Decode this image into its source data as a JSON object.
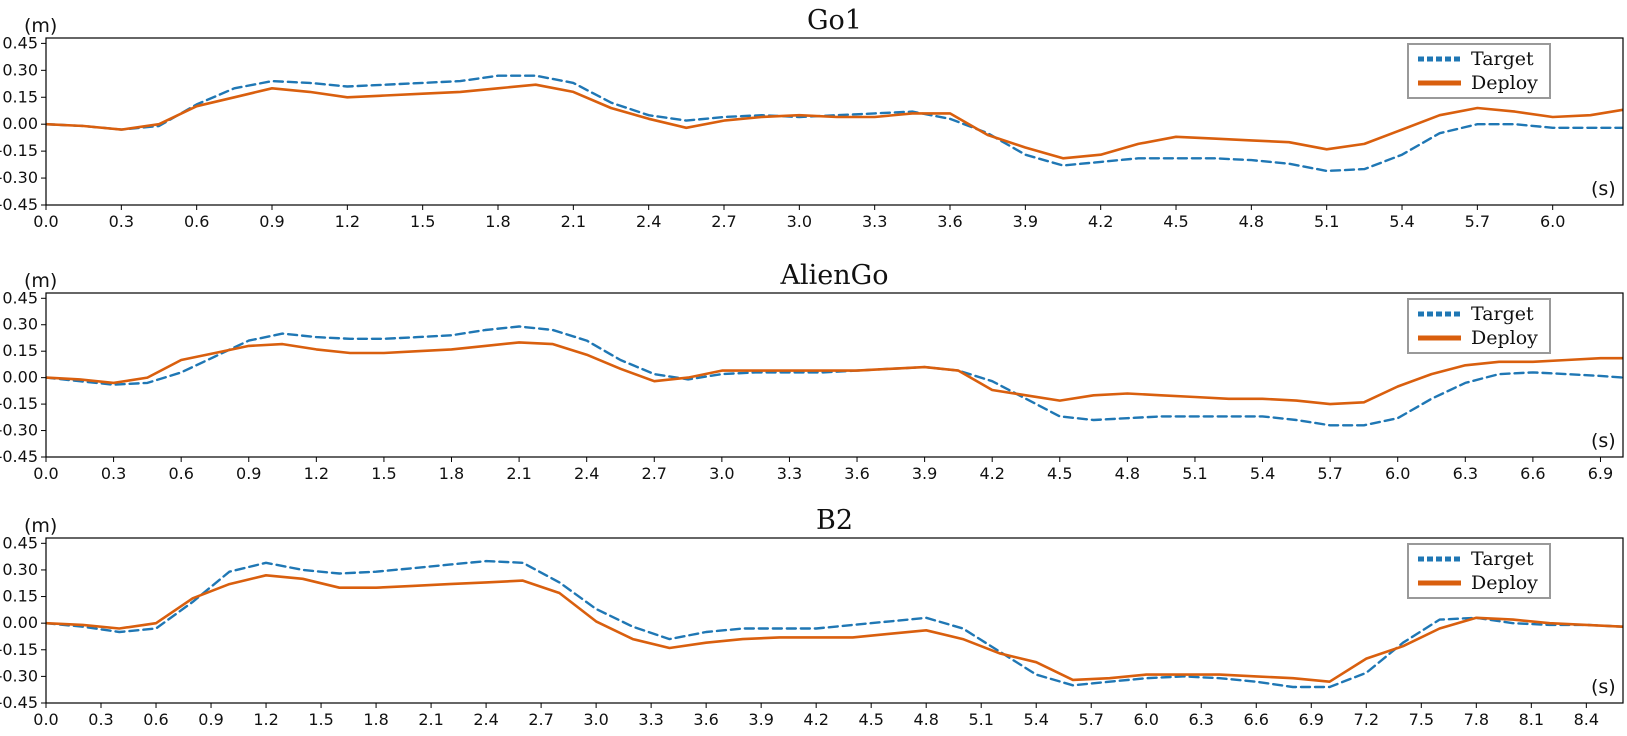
{
  "figure": {
    "colors": {
      "target": "#1f77b4",
      "deploy": "#d95f0e",
      "axis": "#000000"
    }
  },
  "chart_data": [
    {
      "type": "line",
      "title": "Go1",
      "ylabel": "(m)",
      "xlabel": "(s)",
      "ylim": [
        -0.45,
        0.48
      ],
      "xlim": [
        0.0,
        6.28
      ],
      "yticks": [
        "0.45",
        "0.30",
        "0.15",
        "0.00",
        "-0.15",
        "-0.30",
        "-0.45"
      ],
      "xticks": [
        "0.0",
        "0.3",
        "0.6",
        "0.9",
        "1.2",
        "1.5",
        "1.8",
        "2.1",
        "2.4",
        "2.7",
        "3.0",
        "3.3",
        "3.6",
        "3.9",
        "4.2",
        "4.5",
        "4.8",
        "5.1",
        "5.4",
        "5.7",
        "6.0"
      ],
      "legend": {
        "position": "top-right",
        "entries": [
          "Target",
          "Deploy"
        ]
      },
      "series": [
        {
          "name": "Target",
          "style": "dashed",
          "x": [
            0.0,
            0.15,
            0.3,
            0.45,
            0.6,
            0.75,
            0.9,
            1.05,
            1.2,
            1.35,
            1.5,
            1.65,
            1.8,
            1.95,
            2.1,
            2.25,
            2.4,
            2.55,
            2.7,
            2.85,
            3.0,
            3.15,
            3.3,
            3.45,
            3.6,
            3.75,
            3.9,
            4.05,
            4.2,
            4.35,
            4.5,
            4.65,
            4.8,
            4.95,
            5.1,
            5.25,
            5.4,
            5.55,
            5.7,
            5.85,
            6.0,
            6.15,
            6.28
          ],
          "y": [
            0.0,
            -0.01,
            -0.03,
            -0.01,
            0.11,
            0.2,
            0.24,
            0.23,
            0.21,
            0.22,
            0.23,
            0.24,
            0.27,
            0.27,
            0.23,
            0.12,
            0.05,
            0.02,
            0.04,
            0.05,
            0.04,
            0.05,
            0.06,
            0.07,
            0.03,
            -0.05,
            -0.17,
            -0.23,
            -0.21,
            -0.19,
            -0.19,
            -0.19,
            -0.2,
            -0.22,
            -0.26,
            -0.25,
            -0.17,
            -0.05,
            0.0,
            0.0,
            -0.02,
            -0.02,
            -0.02
          ]
        },
        {
          "name": "Deploy",
          "style": "solid",
          "x": [
            0.0,
            0.15,
            0.3,
            0.45,
            0.6,
            0.75,
            0.9,
            1.05,
            1.2,
            1.35,
            1.5,
            1.65,
            1.8,
            1.95,
            2.1,
            2.25,
            2.4,
            2.55,
            2.7,
            2.85,
            3.0,
            3.15,
            3.3,
            3.45,
            3.6,
            3.75,
            3.9,
            4.05,
            4.2,
            4.35,
            4.5,
            4.65,
            4.8,
            4.95,
            5.1,
            5.25,
            5.4,
            5.55,
            5.7,
            5.85,
            6.0,
            6.15,
            6.28
          ],
          "y": [
            0.0,
            -0.01,
            -0.03,
            0.0,
            0.1,
            0.15,
            0.2,
            0.18,
            0.15,
            0.16,
            0.17,
            0.18,
            0.2,
            0.22,
            0.18,
            0.09,
            0.03,
            -0.02,
            0.02,
            0.04,
            0.05,
            0.04,
            0.04,
            0.06,
            0.06,
            -0.06,
            -0.13,
            -0.19,
            -0.17,
            -0.11,
            -0.07,
            -0.08,
            -0.09,
            -0.1,
            -0.14,
            -0.11,
            -0.03,
            0.05,
            0.09,
            0.07,
            0.04,
            0.05,
            0.08
          ]
        }
      ]
    },
    {
      "type": "line",
      "title": "AlienGo",
      "ylabel": "(m)",
      "xlabel": "(s)",
      "ylim": [
        -0.45,
        0.48
      ],
      "xlim": [
        0.0,
        7.0
      ],
      "yticks": [
        "0.45",
        "0.30",
        "0.15",
        "0.00",
        "-0.15",
        "-0.30",
        "-0.45"
      ],
      "xticks": [
        "0.0",
        "0.3",
        "0.6",
        "0.9",
        "1.2",
        "1.5",
        "1.8",
        "2.1",
        "2.4",
        "2.7",
        "3.0",
        "3.3",
        "3.6",
        "3.9",
        "4.2",
        "4.5",
        "4.8",
        "5.1",
        "5.4",
        "5.7",
        "6.0",
        "6.3",
        "6.6",
        "6.9"
      ],
      "legend": {
        "position": "top-right",
        "entries": [
          "Target",
          "Deploy"
        ]
      },
      "series": [
        {
          "name": "Target",
          "style": "dashed",
          "x": [
            0.0,
            0.15,
            0.3,
            0.45,
            0.6,
            0.75,
            0.9,
            1.05,
            1.2,
            1.35,
            1.5,
            1.65,
            1.8,
            1.95,
            2.1,
            2.25,
            2.4,
            2.55,
            2.7,
            2.85,
            3.0,
            3.15,
            3.3,
            3.45,
            3.6,
            3.75,
            3.9,
            4.05,
            4.2,
            4.35,
            4.5,
            4.65,
            4.8,
            4.95,
            5.1,
            5.25,
            5.4,
            5.55,
            5.7,
            5.85,
            6.0,
            6.15,
            6.3,
            6.45,
            6.6,
            6.75,
            6.9,
            7.0
          ],
          "y": [
            0.0,
            -0.02,
            -0.04,
            -0.03,
            0.03,
            0.12,
            0.21,
            0.25,
            0.23,
            0.22,
            0.22,
            0.23,
            0.24,
            0.27,
            0.29,
            0.27,
            0.21,
            0.1,
            0.02,
            -0.01,
            0.02,
            0.03,
            0.03,
            0.03,
            0.04,
            0.05,
            0.06,
            0.04,
            -0.02,
            -0.12,
            -0.22,
            -0.24,
            -0.23,
            -0.22,
            -0.22,
            -0.22,
            -0.22,
            -0.24,
            -0.27,
            -0.27,
            -0.23,
            -0.12,
            -0.03,
            0.02,
            0.03,
            0.02,
            0.01,
            0.0
          ]
        },
        {
          "name": "Deploy",
          "style": "solid",
          "x": [
            0.0,
            0.15,
            0.3,
            0.45,
            0.6,
            0.75,
            0.9,
            1.05,
            1.2,
            1.35,
            1.5,
            1.65,
            1.8,
            1.95,
            2.1,
            2.25,
            2.4,
            2.55,
            2.7,
            2.85,
            3.0,
            3.15,
            3.3,
            3.45,
            3.6,
            3.75,
            3.9,
            4.05,
            4.2,
            4.35,
            4.5,
            4.65,
            4.8,
            4.95,
            5.1,
            5.25,
            5.4,
            5.55,
            5.7,
            5.85,
            6.0,
            6.15,
            6.3,
            6.45,
            6.6,
            6.75,
            6.9,
            7.0
          ],
          "y": [
            0.0,
            -0.01,
            -0.03,
            0.0,
            0.1,
            0.14,
            0.18,
            0.19,
            0.16,
            0.14,
            0.14,
            0.15,
            0.16,
            0.18,
            0.2,
            0.19,
            0.13,
            0.05,
            -0.02,
            0.0,
            0.04,
            0.04,
            0.04,
            0.04,
            0.04,
            0.05,
            0.06,
            0.04,
            -0.07,
            -0.1,
            -0.13,
            -0.1,
            -0.09,
            -0.1,
            -0.11,
            -0.12,
            -0.12,
            -0.13,
            -0.15,
            -0.14,
            -0.05,
            0.02,
            0.07,
            0.09,
            0.09,
            0.1,
            0.11,
            0.11
          ]
        }
      ]
    },
    {
      "type": "line",
      "title": "B2",
      "ylabel": "(m)",
      "xlabel": "(s)",
      "ylim": [
        -0.45,
        0.48
      ],
      "xlim": [
        0.0,
        8.6
      ],
      "yticks": [
        "0.45",
        "0.30",
        "0.15",
        "0.00",
        "-0.15",
        "-0.30",
        "-0.45"
      ],
      "xticks": [
        "0.0",
        "0.3",
        "0.6",
        "0.9",
        "1.2",
        "1.5",
        "1.8",
        "2.1",
        "2.4",
        "2.7",
        "3.0",
        "3.3",
        "3.6",
        "3.9",
        "4.2",
        "4.5",
        "4.8",
        "5.1",
        "5.4",
        "5.7",
        "6.0",
        "6.3",
        "6.6",
        "6.9",
        "7.2",
        "7.5",
        "7.8",
        "8.1",
        "8.4"
      ],
      "legend": {
        "position": "top-right",
        "entries": [
          "Target",
          "Deploy"
        ]
      },
      "series": [
        {
          "name": "Target",
          "style": "dashed",
          "x": [
            0.0,
            0.2,
            0.4,
            0.6,
            0.8,
            1.0,
            1.2,
            1.4,
            1.6,
            1.8,
            2.0,
            2.2,
            2.4,
            2.6,
            2.8,
            3.0,
            3.2,
            3.4,
            3.6,
            3.8,
            4.0,
            4.2,
            4.4,
            4.6,
            4.8,
            5.0,
            5.2,
            5.4,
            5.6,
            5.8,
            6.0,
            6.2,
            6.4,
            6.6,
            6.8,
            7.0,
            7.2,
            7.4,
            7.6,
            7.8,
            8.0,
            8.2,
            8.4,
            8.6
          ],
          "y": [
            0.0,
            -0.02,
            -0.05,
            -0.03,
            0.12,
            0.29,
            0.34,
            0.3,
            0.28,
            0.29,
            0.31,
            0.33,
            0.35,
            0.34,
            0.23,
            0.08,
            -0.02,
            -0.09,
            -0.05,
            -0.03,
            -0.03,
            -0.03,
            -0.01,
            0.01,
            0.03,
            -0.03,
            -0.16,
            -0.29,
            -0.35,
            -0.33,
            -0.31,
            -0.3,
            -0.31,
            -0.33,
            -0.36,
            -0.36,
            -0.28,
            -0.11,
            0.02,
            0.03,
            0.0,
            -0.01,
            -0.01,
            -0.02
          ]
        },
        {
          "name": "Deploy",
          "style": "solid",
          "x": [
            0.0,
            0.2,
            0.4,
            0.6,
            0.8,
            1.0,
            1.2,
            1.4,
            1.6,
            1.8,
            2.0,
            2.2,
            2.4,
            2.6,
            2.8,
            3.0,
            3.2,
            3.4,
            3.6,
            3.8,
            4.0,
            4.2,
            4.4,
            4.6,
            4.8,
            5.0,
            5.2,
            5.4,
            5.6,
            5.8,
            6.0,
            6.2,
            6.4,
            6.6,
            6.8,
            7.0,
            7.2,
            7.4,
            7.6,
            7.8,
            8.0,
            8.2,
            8.4,
            8.6
          ],
          "y": [
            0.0,
            -0.01,
            -0.03,
            0.0,
            0.14,
            0.22,
            0.27,
            0.25,
            0.2,
            0.2,
            0.21,
            0.22,
            0.23,
            0.24,
            0.17,
            0.01,
            -0.09,
            -0.14,
            -0.11,
            -0.09,
            -0.08,
            -0.08,
            -0.08,
            -0.06,
            -0.04,
            -0.09,
            -0.17,
            -0.22,
            -0.32,
            -0.31,
            -0.29,
            -0.29,
            -0.29,
            -0.3,
            -0.31,
            -0.33,
            -0.2,
            -0.13,
            -0.03,
            0.03,
            0.02,
            0.0,
            -0.01,
            -0.02
          ]
        }
      ]
    }
  ]
}
